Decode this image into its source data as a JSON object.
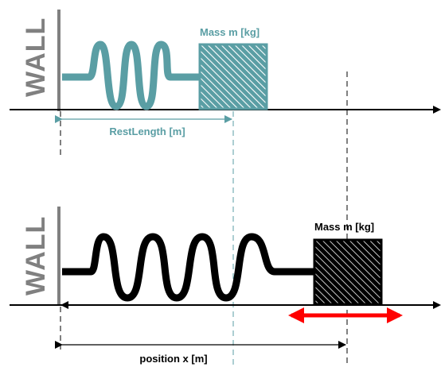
{
  "top_panel": {
    "wall_label": "WALL",
    "mass_label": "Mass m [kg]",
    "rest_length_label": "RestLength [m]"
  },
  "bottom_panel": {
    "wall_label": "WALL",
    "mass_label": "Mass m [kg]",
    "position_label": "position x [m]"
  },
  "colors": {
    "teal": "#5a9ea4",
    "black": "#000000",
    "wall_text": "#808080",
    "arrow_red": "#ff0000"
  }
}
